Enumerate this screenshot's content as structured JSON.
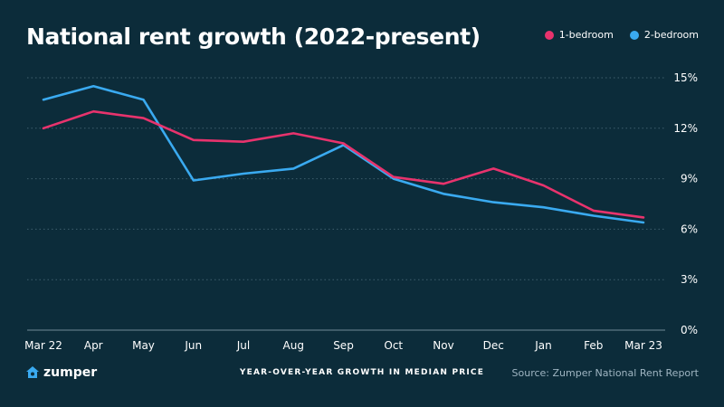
{
  "title": "National rent growth (2022-present)",
  "subtitle": "YEAR-OVER-YEAR GROWTH IN MEDIAN PRICE",
  "source": "Source: Zumper National Rent Report",
  "brand": "zumper",
  "colors": {
    "background": "#0c2c3a",
    "one_bed": "#e8336d",
    "two_bed": "#3aaaf0",
    "grid": "#3f5f6e",
    "text": "#ffffff"
  },
  "chart_data": {
    "type": "line",
    "title": "National rent growth (2022-present)",
    "xlabel": "YEAR-OVER-YEAR GROWTH IN MEDIAN PRICE",
    "ylabel": "",
    "categories": [
      "Mar 22",
      "Apr",
      "May",
      "Jun",
      "Jul",
      "Aug",
      "Sep",
      "Oct",
      "Nov",
      "Dec",
      "Jan",
      "Feb",
      "Mar 23"
    ],
    "ylim": [
      0,
      15
    ],
    "yticks": [
      0,
      3,
      6,
      9,
      12,
      15
    ],
    "ytick_labels": [
      "0%",
      "3%",
      "6%",
      "9%",
      "12%",
      "15%"
    ],
    "grid": true,
    "legend_position": "top-right",
    "series": [
      {
        "name": "1-bedroom",
        "color": "#e8336d",
        "values": [
          12.0,
          13.0,
          12.6,
          11.3,
          11.2,
          11.7,
          11.1,
          9.1,
          8.7,
          9.6,
          8.6,
          7.1,
          6.7
        ]
      },
      {
        "name": "2-bedroom",
        "color": "#3aaaf0",
        "values": [
          13.7,
          14.5,
          13.7,
          8.9,
          9.3,
          9.6,
          11.0,
          9.0,
          8.1,
          7.6,
          7.3,
          6.8,
          6.4
        ]
      }
    ]
  }
}
